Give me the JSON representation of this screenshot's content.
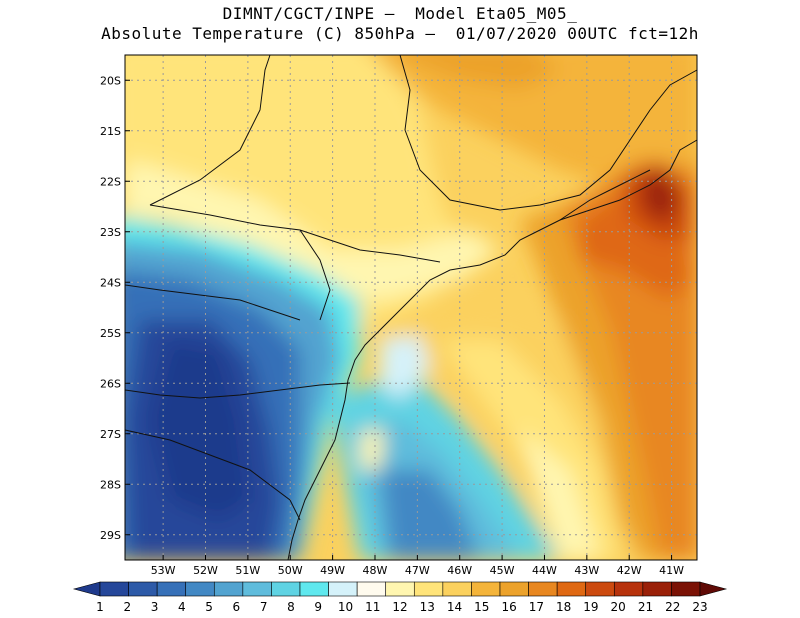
{
  "header": {
    "line1": "DIMNT/CGCT/INPE –  Model Eta05_M05_",
    "line2": "Absolute Temperature (C) 850hPa –  01/07/2020 00UTC fct=12h"
  },
  "map": {
    "lat_labels": [
      "20S",
      "21S",
      "22S",
      "23S",
      "24S",
      "25S",
      "26S",
      "27S",
      "28S",
      "29S"
    ],
    "lon_labels": [
      "53W",
      "52W",
      "51W",
      "50W",
      "49W",
      "48W",
      "47W",
      "46W",
      "45W",
      "44W",
      "43W",
      "42W",
      "41W"
    ],
    "grid": true,
    "lat_range": [
      -29.5,
      -19.5
    ],
    "lon_range": [
      -53.9,
      -40.4
    ]
  },
  "colorbar": {
    "labels": [
      "1",
      "2",
      "3",
      "4",
      "5",
      "6",
      "7",
      "8",
      "9",
      "10",
      "11",
      "12",
      "13",
      "14",
      "15",
      "16",
      "17",
      "18",
      "19",
      "20",
      "21",
      "22",
      "23"
    ],
    "colors": [
      "#1f3a8c",
      "#25479a",
      "#2d5aa8",
      "#3670b8",
      "#4288c4",
      "#52a3d0",
      "#5fbcdc",
      "#5fd3e3",
      "#5fe8ee",
      "#d5f2fa",
      "#fffbee",
      "#fff6b0",
      "#ffe47a",
      "#fbd15e",
      "#f4b43a",
      "#eca22b",
      "#e88720",
      "#df6812",
      "#cc4a0f",
      "#b7320c",
      "#9a2008",
      "#7b1205",
      "#600a06"
    ]
  }
}
